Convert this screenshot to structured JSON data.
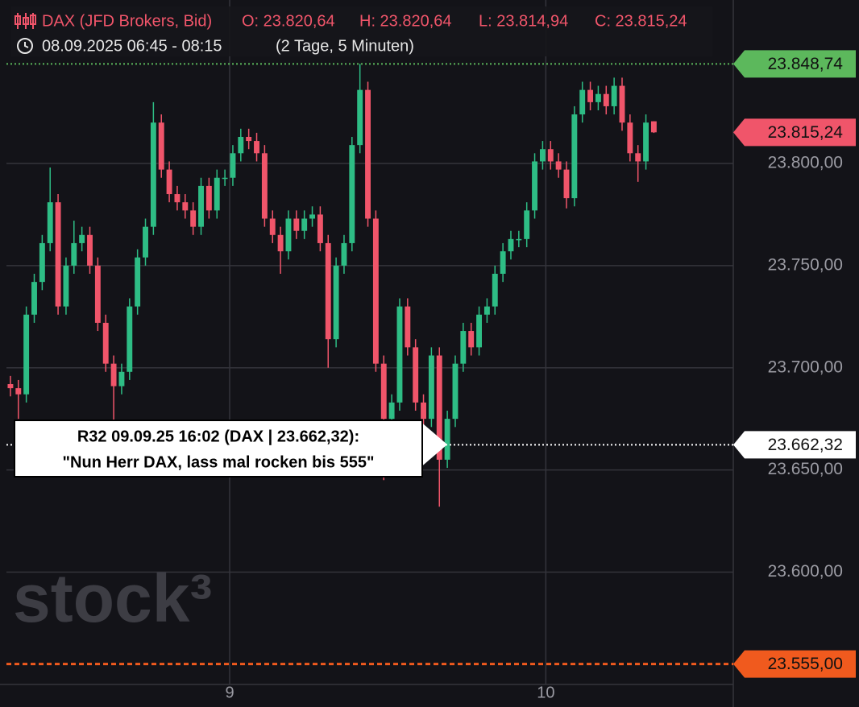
{
  "chart_data": {
    "type": "candlestick",
    "header": [
      "DAX (JFD Brokers, Bid)",
      "O: 23.820,64",
      "H: 23.820,64",
      "L: 23.814,94",
      "C: 23.815,24"
    ],
    "period": "08.09.2025 06:45 - 08:15",
    "interval": "(2 Tage, 5 Minuten)",
    "watermark": "stock³",
    "up_color": "#2ebd85",
    "down_color": "#f0556a",
    "grid": true,
    "xlim": [
      -0.5,
      91
    ],
    "xticks": [
      {
        "value": 27.6,
        "label": "9"
      },
      {
        "value": 67.4,
        "label": "10"
      }
    ],
    "ylim": [
      23545,
      23880
    ],
    "yticks": [
      {
        "value": 23600,
        "label": "23.600,00"
      },
      {
        "value": 23650,
        "label": "23.650,00"
      },
      {
        "value": 23700,
        "label": "23.700,00"
      },
      {
        "value": 23750,
        "label": "23.750,00"
      },
      {
        "value": 23800,
        "label": "23.800,00"
      }
    ],
    "open": [
      23692,
      23690,
      23687,
      23726,
      23742,
      23761,
      23781,
      23730,
      23750,
      23761,
      23765,
      23750,
      23722,
      23702,
      23691,
      23698,
      23730,
      23754,
      23769,
      23820,
      23797,
      23785,
      23781,
      23777,
      23769,
      23789,
      23777,
      23793,
      23793,
      23805,
      23813,
      23811,
      23805,
      23773,
      23765,
      23757,
      23773,
      23767,
      23773,
      23775,
      23761,
      23714,
      23750,
      23761,
      23809,
      23836,
      23773,
      23702,
      23675,
      23683,
      23730,
      23710,
      23683,
      23675,
      23706,
      23655,
      23675,
      23702,
      23718,
      23710,
      23726,
      23730,
      23746,
      23757,
      23763,
      23763,
      23777,
      23801,
      23807,
      23801,
      23797,
      23783,
      23824,
      23836,
      23830,
      23834,
      23828,
      23838,
      23820,
      23805,
      23801,
      23820.64
    ],
    "high": [
      23696,
      23694,
      23730,
      23746,
      23765,
      23798,
      23785,
      23754,
      23772,
      23769,
      23769,
      23754,
      23726,
      23706,
      23702,
      23734,
      23758,
      23773,
      23830,
      23824,
      23801,
      23789,
      23785,
      23781,
      23793,
      23793,
      23797,
      23797,
      23809,
      23817,
      23817,
      23815,
      23809,
      23777,
      23769,
      23777,
      23777,
      23777,
      23779,
      23779,
      23765,
      23754,
      23765,
      23813,
      23848.74,
      23840,
      23777,
      23706,
      23687,
      23734,
      23734,
      23714,
      23687,
      23710,
      23710,
      23679,
      23706,
      23722,
      23722,
      23730,
      23734,
      23750,
      23761,
      23767,
      23767,
      23781,
      23805,
      23811,
      23811,
      23805,
      23801,
      23828,
      23840,
      23840,
      23838,
      23838,
      23842,
      23842,
      23824,
      23809,
      23824,
      23820.64
    ],
    "low": [
      23686,
      23675,
      23683,
      23722,
      23738,
      23757,
      23726,
      23726,
      23746,
      23757,
      23746,
      23718,
      23698,
      23670,
      23687,
      23694,
      23726,
      23750,
      23765,
      23793,
      23781,
      23777,
      23773,
      23765,
      23765,
      23773,
      23773,
      23789,
      23789,
      23801,
      23807,
      23801,
      23769,
      23761,
      23746,
      23753,
      23763,
      23763,
      23769,
      23757,
      23700,
      23710,
      23746,
      23757,
      23805,
      23769,
      23698,
      23645,
      23671,
      23679,
      23706,
      23679,
      23671,
      23671,
      23632,
      23651,
      23671,
      23698,
      23706,
      23706,
      23722,
      23726,
      23742,
      23753,
      23759,
      23759,
      23773,
      23797,
      23797,
      23793,
      23778,
      23779,
      23820,
      23826,
      23826,
      23824,
      23824,
      23816,
      23801,
      23791,
      23797,
      23814.94
    ],
    "close": [
      23690,
      23687,
      23726,
      23742,
      23761,
      23781,
      23730,
      23750,
      23761,
      23765,
      23750,
      23722,
      23702,
      23691,
      23698,
      23730,
      23754,
      23769,
      23820,
      23797,
      23785,
      23781,
      23777,
      23769,
      23789,
      23777,
      23793,
      23793,
      23805,
      23813,
      23811,
      23805,
      23773,
      23765,
      23757,
      23773,
      23767,
      23773,
      23775,
      23761,
      23714,
      23750,
      23761,
      23809,
      23836,
      23773,
      23702,
      23675,
      23683,
      23730,
      23710,
      23683,
      23675,
      23706,
      23655,
      23675,
      23702,
      23718,
      23710,
      23726,
      23730,
      23746,
      23757,
      23763,
      23763,
      23777,
      23801,
      23807,
      23801,
      23797,
      23783,
      23824,
      23836,
      23830,
      23834,
      23828,
      23838,
      23820,
      23805,
      23801,
      23820,
      23815.24
    ],
    "levels": [
      {
        "value": 23848.74,
        "label": "23.848,74",
        "color": "#5cb85c",
        "style": "dotted"
      },
      {
        "value": 23815.24,
        "label": "23.815,24",
        "color": "#f0556a",
        "style": "none"
      },
      {
        "value": 23662.32,
        "label": "23.662,32",
        "color": "#ffffff",
        "style": "dotted"
      },
      {
        "value": 23555,
        "label": "23.555,00",
        "color": "#f05a1e",
        "style": "dashed"
      }
    ],
    "annotation": [
      "R32 09.09.25 16:02 (DAX | 23.662,32):",
      "\"Nun Herr DAX, lass mal rocken bis 555\""
    ]
  }
}
